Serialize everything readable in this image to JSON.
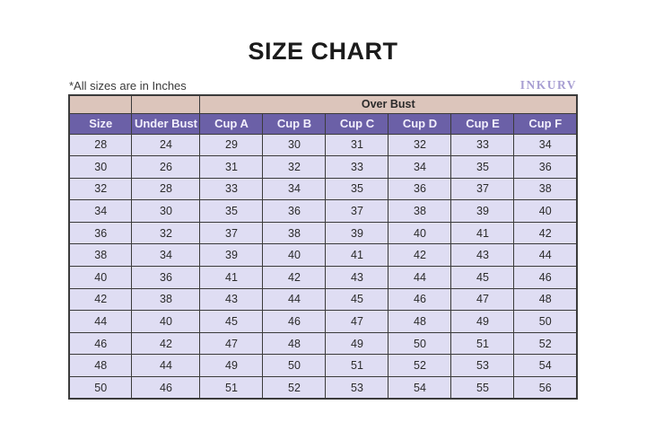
{
  "page": {
    "title": "SIZE CHART",
    "note": "*All sizes are in Inches",
    "brand": "INKURV"
  },
  "table": {
    "group_header": "Over Bust",
    "columns": [
      "Size",
      "Under Bust",
      "Cup A",
      "Cup B",
      "Cup C",
      "Cup D",
      "Cup E",
      "Cup F"
    ],
    "rows": [
      [
        28,
        24,
        29,
        30,
        31,
        32,
        33,
        34
      ],
      [
        30,
        26,
        31,
        32,
        33,
        34,
        35,
        36
      ],
      [
        32,
        28,
        33,
        34,
        35,
        36,
        37,
        38
      ],
      [
        34,
        30,
        35,
        36,
        37,
        38,
        39,
        40
      ],
      [
        36,
        32,
        37,
        38,
        39,
        40,
        41,
        42
      ],
      [
        38,
        34,
        39,
        40,
        41,
        42,
        43,
        44
      ],
      [
        40,
        36,
        41,
        42,
        43,
        44,
        45,
        46
      ],
      [
        42,
        38,
        43,
        44,
        45,
        46,
        47,
        48
      ],
      [
        44,
        40,
        45,
        46,
        47,
        48,
        49,
        50
      ],
      [
        46,
        42,
        47,
        48,
        49,
        50,
        51,
        52
      ],
      [
        48,
        44,
        49,
        50,
        51,
        52,
        53,
        54
      ],
      [
        50,
        46,
        51,
        52,
        53,
        54,
        55,
        56
      ]
    ]
  },
  "colors": {
    "header_purple": "#6b60a7",
    "group_pink": "#dcc5bb",
    "row_lavender": "#dfddf3",
    "border": "#3b3b3b",
    "brand_purple": "#a79ed2",
    "header_text": "#f2effc",
    "title_text": "#1b1b1b"
  }
}
